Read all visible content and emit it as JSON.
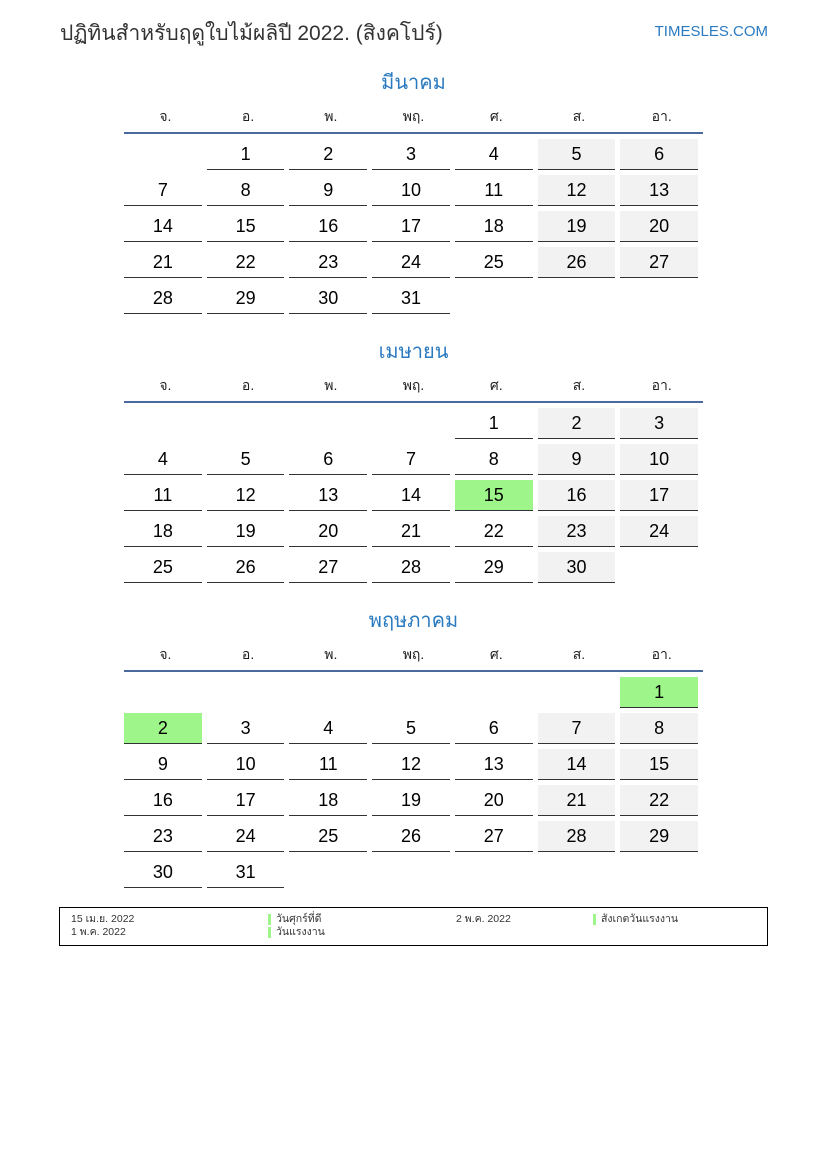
{
  "header": {
    "title": "ปฏิทินสำหรับฤดูใบไม้ผลิปี 2022. (สิงคโปร์)",
    "site": "TIMESLES.COM"
  },
  "colors": {
    "accent": "#2a7ac0",
    "weekend": "#f2f2f2",
    "holiday": "#9ef58a",
    "rule": "#4a6a9f"
  },
  "weekdays": [
    "จ.",
    "อ.",
    "พ.",
    "พฤ.",
    "ศ.",
    "ส.",
    "อา."
  ],
  "months": [
    {
      "name": "มีนาคม",
      "weeks": [
        [
          "",
          1,
          2,
          3,
          4,
          5,
          6
        ],
        [
          7,
          8,
          9,
          10,
          11,
          12,
          13
        ],
        [
          14,
          15,
          16,
          17,
          18,
          19,
          20
        ],
        [
          21,
          22,
          23,
          24,
          25,
          26,
          27
        ],
        [
          28,
          29,
          30,
          31,
          "",
          "",
          ""
        ]
      ],
      "holidays": []
    },
    {
      "name": "เมษายน",
      "weeks": [
        [
          "",
          "",
          "",
          "",
          1,
          2,
          3
        ],
        [
          4,
          5,
          6,
          7,
          8,
          9,
          10
        ],
        [
          11,
          12,
          13,
          14,
          15,
          16,
          17
        ],
        [
          18,
          19,
          20,
          21,
          22,
          23,
          24
        ],
        [
          25,
          26,
          27,
          28,
          29,
          30,
          ""
        ]
      ],
      "holidays": [
        15
      ]
    },
    {
      "name": "พฤษภาคม",
      "weeks": [
        [
          "",
          "",
          "",
          "",
          "",
          "",
          1
        ],
        [
          2,
          3,
          4,
          5,
          6,
          7,
          8
        ],
        [
          9,
          10,
          11,
          12,
          13,
          14,
          15
        ],
        [
          16,
          17,
          18,
          19,
          20,
          21,
          22
        ],
        [
          23,
          24,
          25,
          26,
          27,
          28,
          29
        ],
        [
          30,
          31,
          "",
          "",
          "",
          "",
          ""
        ]
      ],
      "holidays": [
        1,
        2
      ]
    }
  ],
  "legend": [
    {
      "date": "15 เม.ย. 2022",
      "name": "วันศุกร์ที่ดี"
    },
    {
      "date": "2 พ.ค. 2022",
      "name": "สังเกตวันแรงงาน"
    },
    {
      "date": "1 พ.ค. 2022",
      "name": "วันแรงงาน"
    }
  ]
}
